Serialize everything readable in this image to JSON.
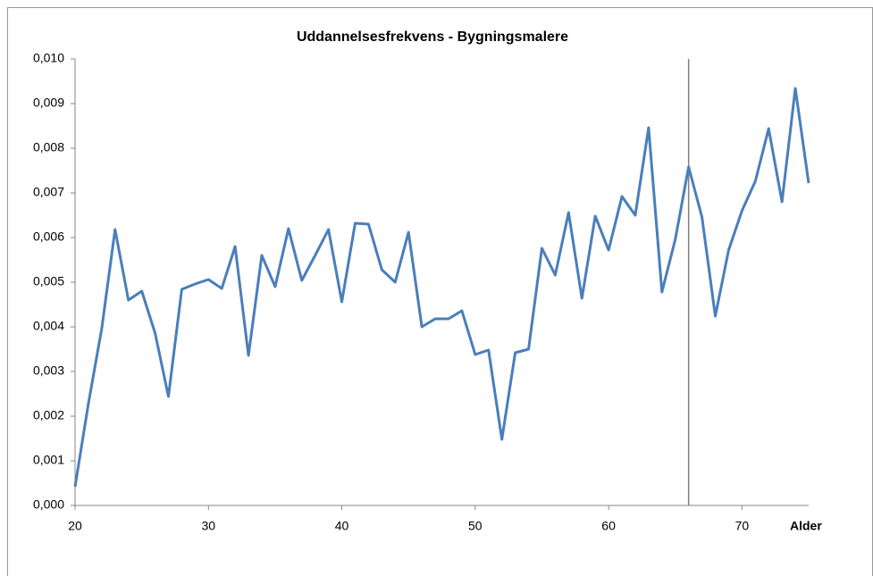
{
  "chart_data": {
    "type": "line",
    "title": "Uddannelsesfrekvens - Bygningsmalere",
    "x_label": "Alder",
    "x": [
      20,
      21,
      22,
      23,
      24,
      25,
      26,
      27,
      28,
      29,
      30,
      31,
      32,
      33,
      34,
      35,
      36,
      37,
      38,
      39,
      40,
      41,
      42,
      43,
      44,
      45,
      46,
      47,
      48,
      49,
      50,
      51,
      52,
      53,
      54,
      55,
      56,
      57,
      58,
      59,
      60,
      61,
      62,
      63,
      64,
      65,
      66,
      67,
      68,
      69,
      70,
      71,
      72,
      73,
      74,
      75
    ],
    "series": [
      {
        "name": "Uddannelsesfrekvens",
        "color": "#4a7ebb",
        "values": [
          0.00042,
          0.00228,
          0.00396,
          0.00618,
          0.0046,
          0.0048,
          0.00386,
          0.00244,
          0.00484,
          0.00496,
          0.00506,
          0.00486,
          0.0058,
          0.00336,
          0.0056,
          0.0049,
          0.0062,
          0.00504,
          0.0056,
          0.00618,
          0.00456,
          0.00632,
          0.0063,
          0.00528,
          0.005,
          0.00612,
          0.004,
          0.00418,
          0.00418,
          0.00436,
          0.00338,
          0.00348,
          0.00148,
          0.00342,
          0.0035,
          0.00576,
          0.00516,
          0.00656,
          0.00464,
          0.00648,
          0.00572,
          0.00692,
          0.0065,
          0.00846,
          0.00478,
          0.00596,
          0.00758,
          0.00646,
          0.00424,
          0.00572,
          0.0066,
          0.00726,
          0.00844,
          0.0068,
          0.00934,
          0.00722
        ]
      }
    ],
    "xlim": [
      20,
      75
    ],
    "xticks": [
      20,
      30,
      40,
      50,
      60,
      70
    ],
    "ylim": [
      0,
      0.01
    ],
    "yticks": [
      {
        "value": 0,
        "label": "0,000"
      },
      {
        "value": 0.001,
        "label": "0,001"
      },
      {
        "value": 0.002,
        "label": "0,002"
      },
      {
        "value": 0.003,
        "label": "0,003"
      },
      {
        "value": 0.004,
        "label": "0,004"
      },
      {
        "value": 0.005,
        "label": "0,005"
      },
      {
        "value": 0.006,
        "label": "0,006"
      },
      {
        "value": 0.007,
        "label": "0,007"
      },
      {
        "value": 0.008,
        "label": "0,008"
      },
      {
        "value": 0.009,
        "label": "0,009"
      },
      {
        "value": 0.01,
        "label": "0,010"
      }
    ],
    "vline": 66,
    "vline_color": "#808080",
    "grid": false
  }
}
